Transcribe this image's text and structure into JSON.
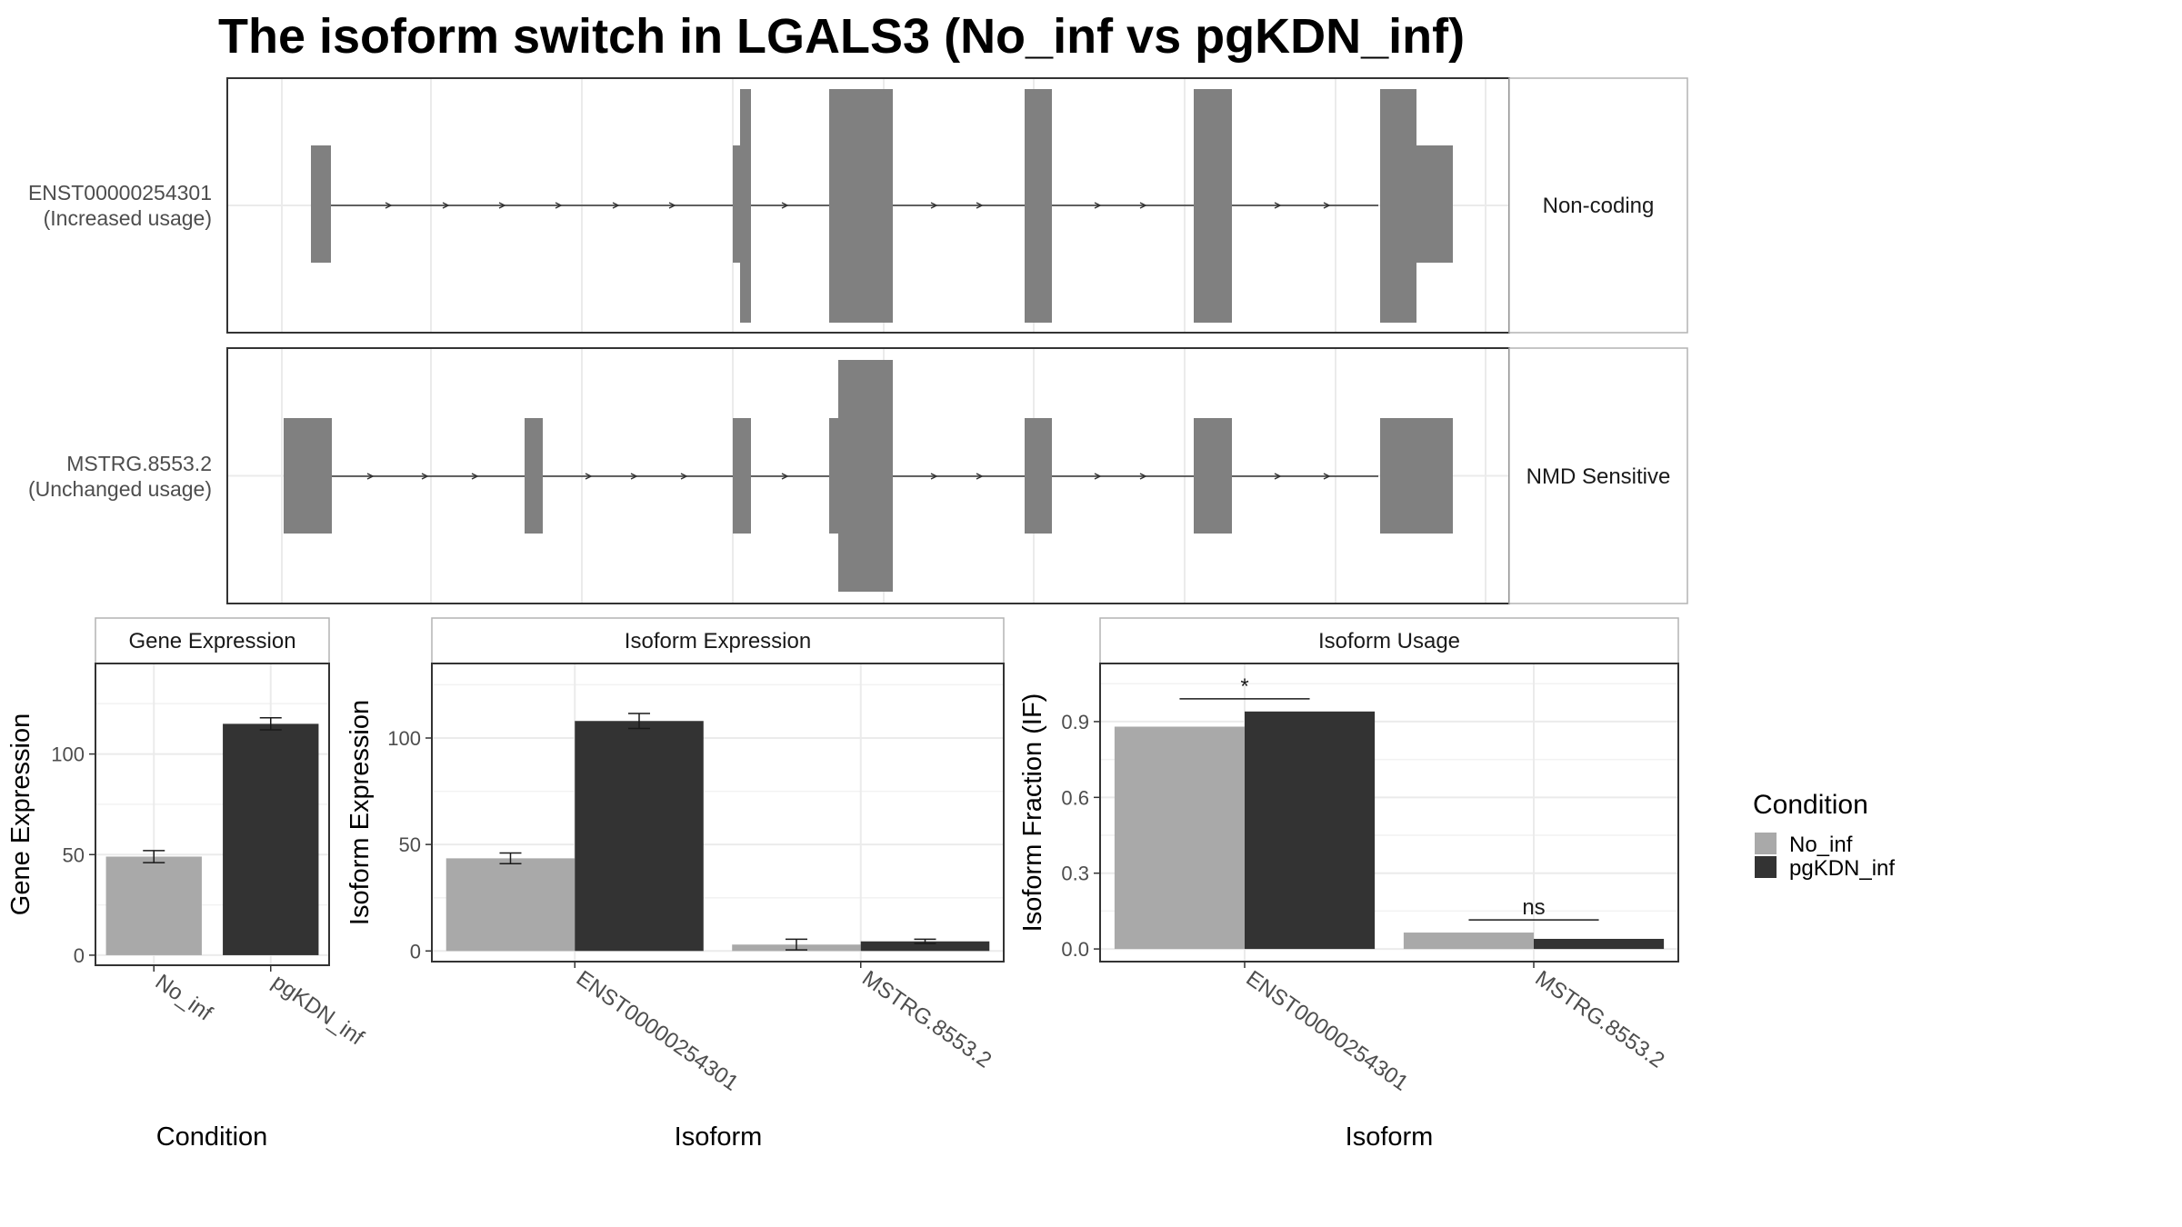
{
  "title": "The isoform switch in LGALS3 (No_inf vs pgKDN_inf)",
  "colors": {
    "no_inf": "#a9a9a9",
    "pgkdn_inf": "#333333",
    "exon": "#808080",
    "grid": "#ebebeb",
    "panel_border": "#333333",
    "strip_border": "#b3b3b3"
  },
  "structure": {
    "tracks": [
      {
        "name": "ENST00000254301",
        "usage": "(Increased usage)",
        "annotation": "Non-coding"
      },
      {
        "name": "MSTRG.8553.2",
        "usage": "(Unchanged usage)",
        "annotation": "NMD Sensitive"
      }
    ]
  },
  "legend": {
    "title": "Condition",
    "items": [
      "No_inf",
      "pgKDN_inf"
    ]
  },
  "chart_data": [
    {
      "type": "bar",
      "panel": "Gene Expression",
      "title": "Gene Expression",
      "xlabel": "Condition",
      "ylabel": "Gene Expression",
      "categories": [
        "No_inf",
        "pgKDN_inf"
      ],
      "values": [
        49,
        115
      ],
      "errors": [
        3,
        3
      ],
      "ylim": [
        -5,
        145
      ],
      "yticks": [
        0,
        50,
        100
      ],
      "grid": true
    },
    {
      "type": "bar",
      "panel": "Isoform Expression",
      "title": "Isoform Expression",
      "xlabel": "Isoform",
      "ylabel": "Isoform Expression",
      "categories": [
        "ENST00000254301",
        "MSTRG.8553.2"
      ],
      "series": [
        {
          "name": "No_inf",
          "values": [
            43.5,
            3
          ],
          "errors": [
            2.5,
            2.5
          ]
        },
        {
          "name": "pgKDN_inf",
          "values": [
            108,
            4.5
          ],
          "errors": [
            3.5,
            1
          ]
        }
      ],
      "ylim": [
        -5,
        135
      ],
      "yticks": [
        0,
        50,
        100
      ],
      "grid": true
    },
    {
      "type": "bar",
      "panel": "Isoform Usage",
      "title": "Isoform Usage",
      "xlabel": "Isoform",
      "ylabel": "Isoform Fraction (IF)",
      "categories": [
        "ENST00000254301",
        "MSTRG.8553.2"
      ],
      "series": [
        {
          "name": "No_inf",
          "values": [
            0.88,
            0.065
          ]
        },
        {
          "name": "pgKDN_inf",
          "values": [
            0.94,
            0.04
          ]
        }
      ],
      "significance": [
        "*",
        "ns"
      ],
      "ylim": [
        -0.05,
        1.13
      ],
      "yticks": [
        0.0,
        0.3,
        0.6,
        0.9
      ],
      "ytick_labels": [
        "0.0",
        "0.3",
        "0.6",
        "0.9"
      ],
      "grid": true
    }
  ]
}
